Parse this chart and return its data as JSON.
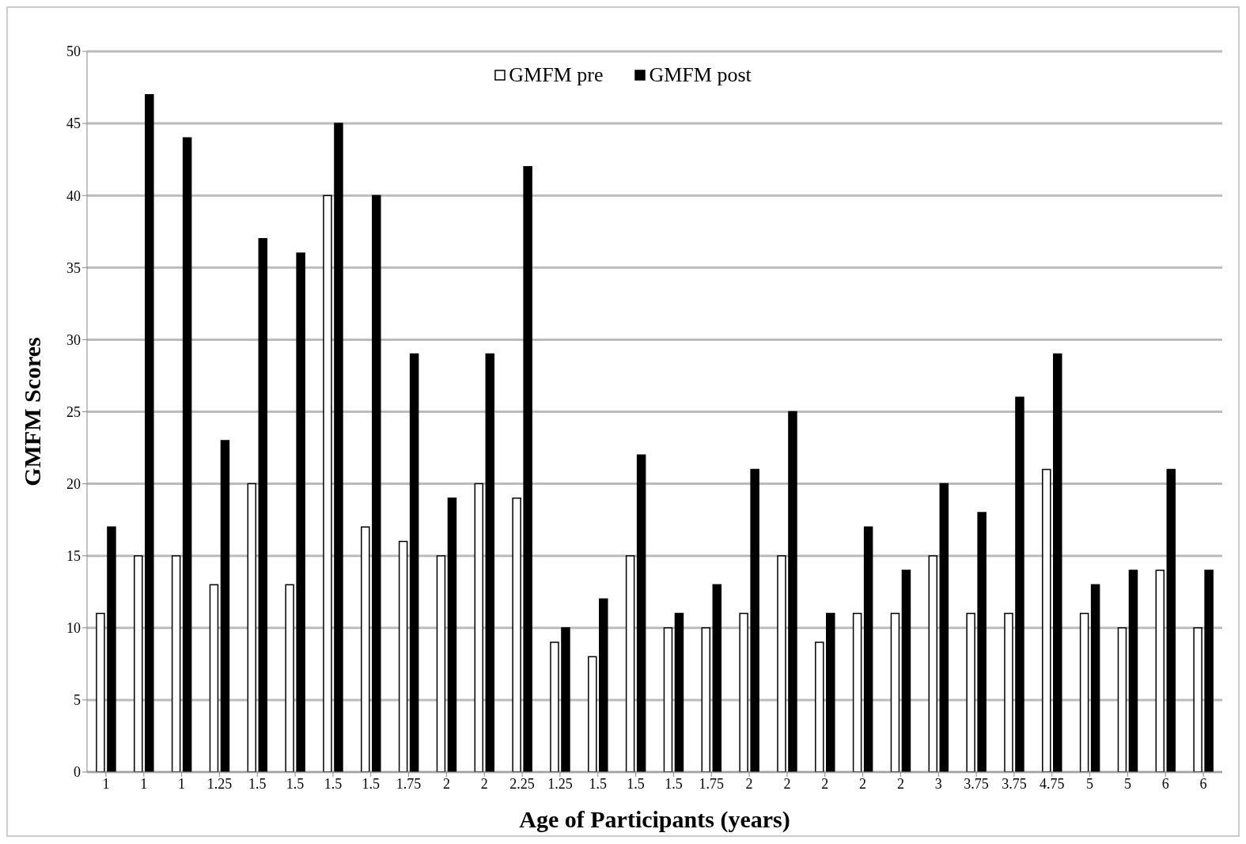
{
  "chart_data": {
    "type": "bar",
    "xlabel": "Age of Participants (years)",
    "ylabel": "GMFM Scores",
    "categories": [
      "1",
      "1",
      "1",
      "1.25",
      "1.5",
      "1.5",
      "1.5",
      "1.5",
      "1.75",
      "2",
      "2",
      "2.25",
      "1.25",
      "1.5",
      "1.5",
      "1.5",
      "1.75",
      "2",
      "2",
      "2",
      "2",
      "2",
      "3",
      "3.75",
      "3.75",
      "4.75",
      "5",
      "5",
      "6",
      "6"
    ],
    "series": [
      {
        "name": "GMFM pre",
        "color": "#ffffff",
        "values": [
          11,
          15,
          15,
          13,
          20,
          13,
          40,
          17,
          16,
          15,
          20,
          19,
          9,
          8,
          15,
          10,
          10,
          11,
          15,
          9,
          11,
          11,
          15,
          11,
          11,
          21,
          11,
          10,
          14,
          10
        ]
      },
      {
        "name": "GMFM post",
        "color": "#000000",
        "values": [
          17,
          47,
          44,
          23,
          37,
          36,
          45,
          40,
          29,
          19,
          29,
          42,
          10,
          12,
          22,
          11,
          13,
          21,
          25,
          11,
          17,
          14,
          20,
          18,
          26,
          29,
          13,
          14,
          21,
          14
        ]
      }
    ],
    "ylim": [
      0,
      50
    ],
    "yticks": [
      0,
      5,
      10,
      15,
      20,
      25,
      30,
      35,
      40,
      45,
      50
    ],
    "grid": "y",
    "legend": "top"
  }
}
